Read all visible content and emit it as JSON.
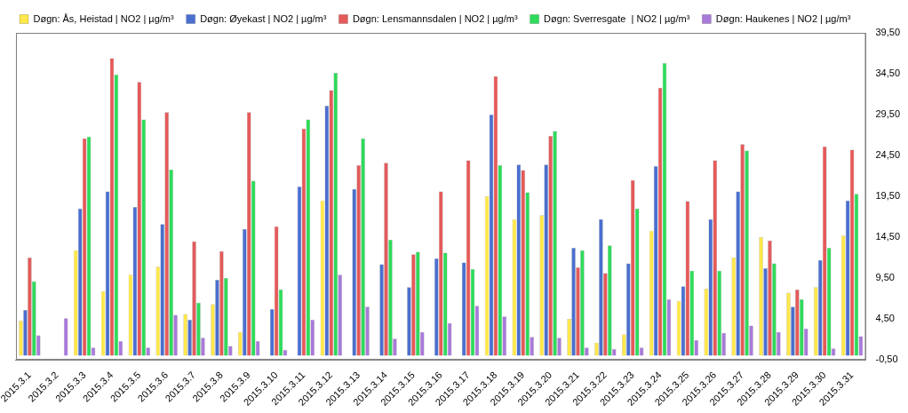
{
  "chart_data": {
    "type": "bar",
    "categories": [
      "2015.3.1",
      "2015.3.2",
      "2015.3.3",
      "2015.3.4",
      "2015.3.5",
      "2015.3.6",
      "2015.3.7",
      "2015.3.8",
      "2015.3.9",
      "2015.3.10",
      "2015.3.11",
      "2015.3.12",
      "2015.3.13",
      "2015.3.14",
      "2015.3.15",
      "2015.3.16",
      "2015.3.17",
      "2015.3.18",
      "2015.3.19",
      "2015.3.20",
      "2015.3.21",
      "2015.3.22",
      "2015.3.23",
      "2015.3.24",
      "2015.3.25",
      "2015.3.26",
      "2015.3.27",
      "2015.3.28",
      "2015.3.29",
      "2015.3.30",
      "2015.3.31"
    ],
    "series": [
      {
        "name": "Døgn: Ås, Heistad | NO2 | µg/m³",
        "color": "#FFE84A",
        "values": [
          4.3,
          null,
          12.9,
          7.9,
          9.9,
          10.9,
          5.1,
          6.3,
          2.9,
          null,
          null,
          19.0,
          null,
          null,
          null,
          null,
          null,
          19.5,
          16.7,
          17.2,
          4.5,
          1.6,
          2.6,
          15.3,
          6.7,
          8.2,
          12.0,
          14.5,
          7.7,
          8.4,
          14.7
        ]
      },
      {
        "name": "Døgn: Øyekast | NO2 | µg/m³",
        "color": "#4A6FD0",
        "values": [
          5.6,
          null,
          18.0,
          20.1,
          18.2,
          16.1,
          4.4,
          9.3,
          15.5,
          5.7,
          20.7,
          30.6,
          20.4,
          11.2,
          8.4,
          11.9,
          11.4,
          29.5,
          23.4,
          23.4,
          13.2,
          16.7,
          11.3,
          23.2,
          8.5,
          16.7,
          20.1,
          10.7,
          6.0,
          11.7,
          19.0
        ]
      },
      {
        "name": "Døgn: Lensmannsdalen | NO2 | µg/m³",
        "color": "#E55A5A",
        "values": [
          12.0,
          null,
          26.6,
          36.4,
          33.5,
          29.8,
          14.0,
          12.8,
          29.8,
          15.8,
          27.8,
          32.5,
          23.3,
          23.6,
          12.4,
          20.1,
          23.9,
          34.2,
          22.7,
          26.9,
          10.8,
          10.1,
          21.5,
          32.8,
          18.9,
          23.9,
          25.9,
          14.1,
          8.1,
          25.6,
          25.2
        ]
      },
      {
        "name": "Døgn: Sverresgate  | NO2 | µg/m³",
        "color": "#2EDB5A",
        "values": [
          9.1,
          null,
          26.8,
          34.4,
          28.9,
          22.8,
          6.5,
          9.5,
          21.4,
          8.1,
          28.9,
          34.6,
          26.6,
          14.2,
          12.7,
          12.6,
          10.6,
          23.3,
          20.0,
          27.5,
          12.9,
          13.5,
          18.0,
          35.8,
          10.4,
          10.4,
          25.1,
          11.3,
          6.9,
          13.2,
          19.8
        ]
      },
      {
        "name": "Døgn: Haukenes | NO2 | µg/m³",
        "color": "#A87AD9",
        "values": [
          2.5,
          4.6,
          1.0,
          1.8,
          1.0,
          5.0,
          2.2,
          1.2,
          1.8,
          0.7,
          4.4,
          9.9,
          6.0,
          2.1,
          2.9,
          4.0,
          6.1,
          4.8,
          2.3,
          2.2,
          1.0,
          0.8,
          1.0,
          6.9,
          1.9,
          2.8,
          3.7,
          2.9,
          3.3,
          0.9,
          2.4
        ]
      }
    ],
    "ylim": [
      -0.5,
      39.5
    ],
    "yticks": [
      {
        "value": -0.5,
        "label": "-0,50"
      },
      {
        "value": 4.5,
        "label": "4,50"
      },
      {
        "value": 9.5,
        "label": "9,50"
      },
      {
        "value": 14.5,
        "label": "14,50"
      },
      {
        "value": 19.5,
        "label": "19,50"
      },
      {
        "value": 24.5,
        "label": "24,50"
      },
      {
        "value": 29.5,
        "label": "29,50"
      },
      {
        "value": 34.5,
        "label": "34,50"
      },
      {
        "value": 39.5,
        "label": "39,50"
      }
    ],
    "grid": false,
    "legend": "top"
  }
}
